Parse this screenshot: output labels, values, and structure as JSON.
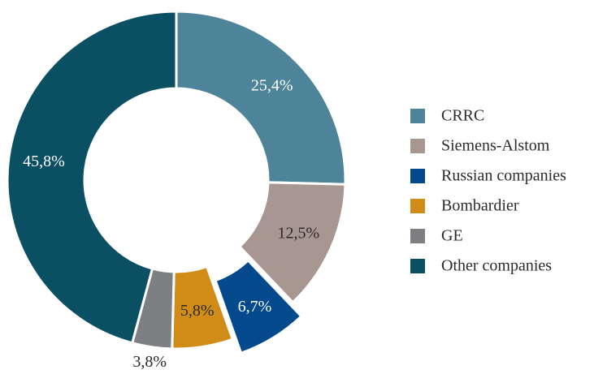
{
  "chart_data": {
    "type": "donut",
    "categories": [
      "CRRC",
      "Siemens-Alstom",
      "Russian companies",
      "Bombardier",
      "GE",
      "Other companies"
    ],
    "values": [
      25.4,
      12.5,
      6.7,
      5.8,
      3.8,
      45.8
    ],
    "value_labels": [
      "25,4%",
      "12,5%",
      "6,7%",
      "5,8%",
      "3,8%",
      "45,8%"
    ],
    "colors": [
      "#4e8499",
      "#a89690",
      "#034a8c",
      "#d08c16",
      "#7d7f83",
      "#0b4f63"
    ],
    "explode_index": 2,
    "legend": "right"
  }
}
